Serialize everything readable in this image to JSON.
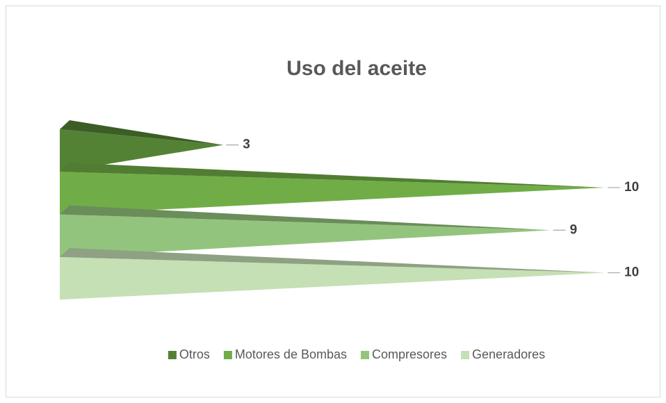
{
  "chart_data": {
    "type": "bar3d-pyramid",
    "title": "Uso del aceite",
    "categories": [
      "Otros",
      "Motores de Bombas",
      "Compresores",
      "Generadores"
    ],
    "values": [
      3,
      10,
      9,
      10
    ],
    "colors": [
      "#548235",
      "#70ad47",
      "#93c47d",
      "#c5e0b4"
    ],
    "legend": "bottom"
  }
}
